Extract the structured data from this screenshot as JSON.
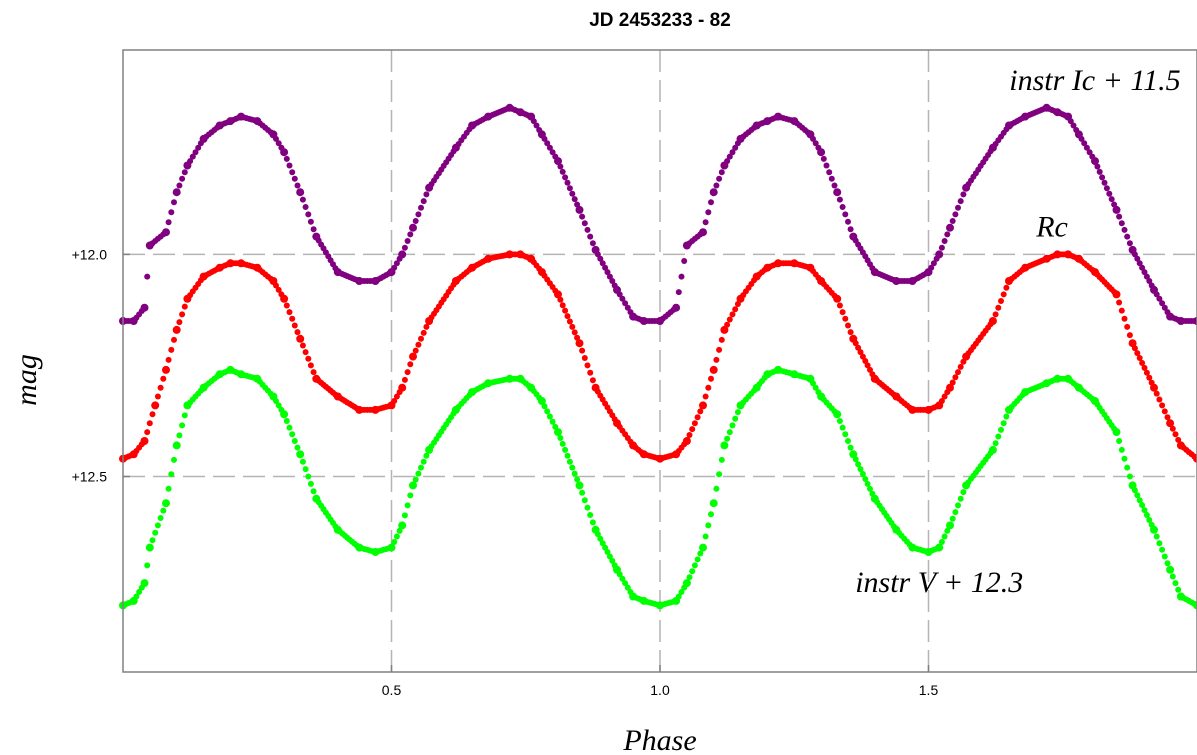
{
  "chart_data": {
    "type": "scatter",
    "title": "JD 2453233 - 82",
    "xlabel": "Phase",
    "ylabel": "mag",
    "xlim": [
      0.0,
      2.0
    ],
    "ylim": [
      12.94,
      11.54
    ],
    "y_inverted": true,
    "grid": "dashed gray lines at major ticks",
    "x_ticks": [
      {
        "value": 0.5,
        "label": "0.5"
      },
      {
        "value": 1.0,
        "label": "1.0"
      },
      {
        "value": 1.5,
        "label": "1.5"
      }
    ],
    "y_ticks": [
      {
        "value": 12.0,
        "label": "+12.0"
      },
      {
        "value": 12.5,
        "label": "+12.5"
      }
    ],
    "annotations": [
      {
        "text": "instr Ic + 11.5",
        "x": 1.81,
        "y": 11.63
      },
      {
        "text": "Rc",
        "x": 1.73,
        "y": 11.96
      },
      {
        "text": "instr V + 12.3",
        "x": 1.52,
        "y": 12.76
      }
    ],
    "series": [
      {
        "color": "#800080",
        "description": "phase-folded eclipsing binary light curve, shifted",
        "x": [
          0.0,
          0.02,
          0.04,
          0.05,
          0.08,
          0.1,
          0.12,
          0.15,
          0.18,
          0.2,
          0.22,
          0.25,
          0.28,
          0.3,
          0.33,
          0.36,
          0.4,
          0.44,
          0.47,
          0.5,
          0.52,
          0.54,
          0.57,
          0.62,
          0.65,
          0.68,
          0.72,
          0.74,
          0.76,
          0.78,
          0.81,
          0.85,
          0.88,
          0.92,
          0.95,
          0.97,
          1.0,
          1.03,
          1.05,
          1.08,
          1.1,
          1.12,
          1.15,
          1.18,
          1.2,
          1.22,
          1.25,
          1.28,
          1.3,
          1.33,
          1.36,
          1.4,
          1.44,
          1.47,
          1.5,
          1.52,
          1.54,
          1.57,
          1.62,
          1.65,
          1.68,
          1.72,
          1.74,
          1.76,
          1.78,
          1.81,
          1.85,
          1.88,
          1.92,
          1.95,
          1.97,
          2.0
        ],
        "y": [
          12.15,
          12.15,
          12.12,
          11.98,
          11.95,
          11.86,
          11.8,
          11.74,
          11.71,
          11.7,
          11.69,
          11.7,
          11.73,
          11.77,
          11.86,
          11.96,
          12.04,
          12.06,
          12.06,
          12.04,
          12.0,
          11.94,
          11.85,
          11.76,
          11.71,
          11.69,
          11.67,
          11.68,
          11.69,
          11.73,
          11.79,
          11.9,
          11.99,
          12.08,
          12.14,
          12.15,
          12.15,
          12.12,
          11.98,
          11.95,
          11.86,
          11.8,
          11.74,
          11.71,
          11.7,
          11.69,
          11.7,
          11.73,
          11.77,
          11.86,
          11.96,
          12.04,
          12.06,
          12.06,
          12.04,
          12.0,
          11.94,
          11.85,
          11.76,
          11.71,
          11.69,
          11.67,
          11.68,
          11.69,
          11.73,
          11.79,
          11.9,
          11.99,
          12.08,
          12.14,
          12.15,
          12.15
        ]
      },
      {
        "color": "#ff0000",
        "description": "phase-folded eclipsing binary light curve",
        "x": [
          0.0,
          0.02,
          0.04,
          0.06,
          0.08,
          0.1,
          0.12,
          0.15,
          0.18,
          0.2,
          0.22,
          0.25,
          0.28,
          0.3,
          0.33,
          0.36,
          0.4,
          0.44,
          0.47,
          0.5,
          0.52,
          0.54,
          0.57,
          0.62,
          0.65,
          0.68,
          0.72,
          0.74,
          0.76,
          0.78,
          0.81,
          0.85,
          0.88,
          0.92,
          0.95,
          0.97,
          1.0,
          1.03,
          1.05,
          1.08,
          1.1,
          1.12,
          1.15,
          1.18,
          1.2,
          1.22,
          1.25,
          1.28,
          1.3,
          1.33,
          1.36,
          1.4,
          1.44,
          1.47,
          1.5,
          1.52,
          1.54,
          1.57,
          1.62,
          1.65,
          1.68,
          1.72,
          1.74,
          1.76,
          1.78,
          1.81,
          1.85,
          1.88,
          1.92,
          1.95,
          1.97,
          2.0
        ],
        "y": [
          12.46,
          12.45,
          12.42,
          12.34,
          12.26,
          12.17,
          12.1,
          12.05,
          12.03,
          12.02,
          12.02,
          12.03,
          12.06,
          12.1,
          12.19,
          12.28,
          12.32,
          12.35,
          12.35,
          12.34,
          12.3,
          12.23,
          12.15,
          12.06,
          12.03,
          12.01,
          12.0,
          12.0,
          12.01,
          12.04,
          12.09,
          12.2,
          12.3,
          12.38,
          12.43,
          12.45,
          12.46,
          12.45,
          12.42,
          12.34,
          12.26,
          12.17,
          12.1,
          12.05,
          12.03,
          12.02,
          12.02,
          12.03,
          12.06,
          12.1,
          12.19,
          12.28,
          12.32,
          12.35,
          12.35,
          12.34,
          12.3,
          12.23,
          12.15,
          12.06,
          12.03,
          12.01,
          12.0,
          12.0,
          12.01,
          12.04,
          12.09,
          12.2,
          12.3,
          12.38,
          12.43,
          12.46
        ]
      },
      {
        "color": "#00ff00",
        "description": "phase-folded eclipsing binary light curve, shifted",
        "x": [
          0.0,
          0.02,
          0.04,
          0.05,
          0.08,
          0.1,
          0.12,
          0.15,
          0.18,
          0.2,
          0.22,
          0.25,
          0.28,
          0.3,
          0.33,
          0.36,
          0.4,
          0.44,
          0.47,
          0.5,
          0.52,
          0.54,
          0.57,
          0.62,
          0.65,
          0.68,
          0.72,
          0.74,
          0.76,
          0.78,
          0.81,
          0.85,
          0.88,
          0.92,
          0.95,
          0.97,
          1.0,
          1.03,
          1.05,
          1.08,
          1.1,
          1.12,
          1.15,
          1.18,
          1.2,
          1.22,
          1.25,
          1.28,
          1.3,
          1.33,
          1.36,
          1.4,
          1.44,
          1.47,
          1.5,
          1.52,
          1.54,
          1.57,
          1.62,
          1.65,
          1.68,
          1.72,
          1.74,
          1.76,
          1.78,
          1.81,
          1.85,
          1.88,
          1.92,
          1.95,
          1.97,
          2.0
        ],
        "y": [
          12.79,
          12.78,
          12.74,
          12.66,
          12.56,
          12.43,
          12.34,
          12.3,
          12.27,
          12.26,
          12.27,
          12.28,
          12.32,
          12.36,
          12.45,
          12.55,
          12.62,
          12.66,
          12.67,
          12.66,
          12.61,
          12.52,
          12.44,
          12.35,
          12.31,
          12.29,
          12.28,
          12.28,
          12.3,
          12.33,
          12.4,
          12.52,
          12.62,
          12.71,
          12.77,
          12.78,
          12.79,
          12.78,
          12.74,
          12.66,
          12.56,
          12.43,
          12.34,
          12.3,
          12.27,
          12.26,
          12.27,
          12.28,
          12.32,
          12.36,
          12.45,
          12.55,
          12.62,
          12.66,
          12.67,
          12.66,
          12.61,
          12.52,
          12.44,
          12.35,
          12.31,
          12.29,
          12.28,
          12.28,
          12.3,
          12.33,
          12.4,
          12.52,
          12.62,
          12.71,
          12.77,
          12.79
        ]
      }
    ]
  }
}
